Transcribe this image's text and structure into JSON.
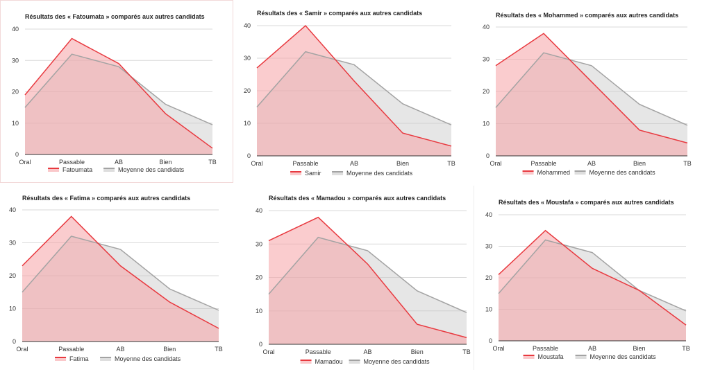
{
  "colors": {
    "candidate_line": "#e8393f",
    "candidate_fill": "#f6a3a6",
    "average_line": "#a3a3a3",
    "average_fill": "#c8c8c8"
  },
  "chart_data": [
    {
      "type": "area",
      "title": "Résultats des « Fatoumata » comparés aux autres candidats",
      "categories": [
        "Oral",
        "Passable",
        "AB",
        "Bien",
        "TB"
      ],
      "ylim": [
        0,
        40
      ],
      "yticks": [
        "0",
        "10",
        "20",
        "30",
        "40"
      ],
      "grid": true,
      "legend_position": "bottom",
      "series": [
        {
          "name": "Fatoumata",
          "values": [
            19,
            37,
            29,
            13,
            2
          ]
        },
        {
          "name": "Moyenne des candidats",
          "values": [
            15,
            32,
            28,
            16,
            9.5
          ]
        }
      ]
    },
    {
      "type": "area",
      "title": "Résultats des « Samir » comparés aux autres candidats",
      "categories": [
        "Oral",
        "Passable",
        "AB",
        "Bien",
        "TB"
      ],
      "ylim": [
        0,
        40
      ],
      "yticks": [
        "0",
        "10",
        "20",
        "30",
        "40"
      ],
      "grid": true,
      "legend_position": "bottom",
      "series": [
        {
          "name": "Samir",
          "values": [
            27,
            40,
            23,
            7,
            3
          ]
        },
        {
          "name": "Moyenne des candidats",
          "values": [
            15,
            32,
            28,
            16,
            9.5
          ]
        }
      ]
    },
    {
      "type": "area",
      "title": "Résultats des « Mohammed » comparés aux autres candidats",
      "categories": [
        "Oral",
        "Passable",
        "AB",
        "Bien",
        "TB"
      ],
      "ylim": [
        0,
        40
      ],
      "yticks": [
        "0",
        "10",
        "20",
        "30",
        "40"
      ],
      "grid": true,
      "legend_position": "bottom",
      "series": [
        {
          "name": "Mohammed",
          "values": [
            28,
            38,
            23,
            8,
            4
          ]
        },
        {
          "name": "Moyenne des candidats",
          "values": [
            15,
            32,
            28,
            16,
            9.5
          ]
        }
      ]
    },
    {
      "type": "area",
      "title": "Résultats des « Fatima » comparés aux autres candidats",
      "categories": [
        "Oral",
        "Passable",
        "AB",
        "Bien",
        "TB"
      ],
      "ylim": [
        0,
        40
      ],
      "yticks": [
        "0",
        "10",
        "20",
        "30",
        "40"
      ],
      "grid": true,
      "legend_position": "bottom",
      "series": [
        {
          "name": "Fatima",
          "values": [
            23,
            38,
            23,
            12,
            4
          ]
        },
        {
          "name": "Moyenne des candidats",
          "values": [
            15,
            32,
            28,
            16,
            9.5
          ]
        }
      ]
    },
    {
      "type": "area",
      "title": "Résultats des « Mamadou » comparés aux autres candidats",
      "categories": [
        "Oral",
        "Passable",
        "AB",
        "Bien",
        "TB"
      ],
      "ylim": [
        0,
        40
      ],
      "yticks": [
        "0",
        "10",
        "20",
        "30",
        "40"
      ],
      "grid": true,
      "legend_position": "bottom",
      "series": [
        {
          "name": "Mamadou",
          "values": [
            31,
            38,
            24,
            6,
            2
          ]
        },
        {
          "name": "Moyenne des candidats",
          "values": [
            15,
            32,
            28,
            16,
            9.5
          ]
        }
      ]
    },
    {
      "type": "area",
      "title": "Résultats des « Moustafa » comparés aux autres candidats",
      "categories": [
        "Oral",
        "Passable",
        "AB",
        "Bien",
        "TB"
      ],
      "ylim": [
        0,
        40
      ],
      "yticks": [
        "0",
        "10",
        "20",
        "30",
        "40"
      ],
      "grid": true,
      "legend_position": "bottom",
      "series": [
        {
          "name": "Moustafa",
          "values": [
            21,
            35,
            23,
            16,
            5
          ]
        },
        {
          "name": "Moyenne des candidats",
          "values": [
            15,
            32,
            28,
            16,
            9.5
          ]
        }
      ]
    }
  ]
}
